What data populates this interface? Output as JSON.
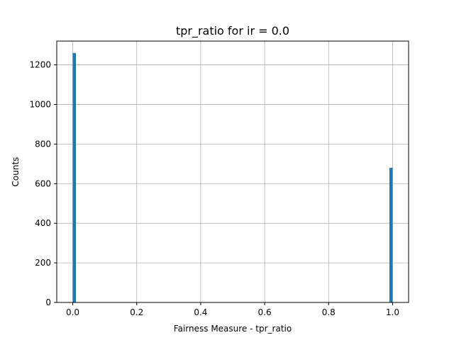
{
  "chart_data": {
    "type": "bar",
    "title": "tpr_ratio for ir = 0.0",
    "xlabel": "Fairness Measure - tpr_ratio",
    "ylabel": "Counts",
    "xlim": [
      -0.05,
      1.05
    ],
    "ylim": [
      0,
      1320
    ],
    "xticks": [
      0.0,
      0.2,
      0.4,
      0.6,
      0.8,
      1.0
    ],
    "xtick_labels": [
      "0.0",
      "0.2",
      "0.4",
      "0.6",
      "0.8",
      "1.0"
    ],
    "yticks": [
      0,
      200,
      400,
      600,
      800,
      1000,
      1200
    ],
    "ytick_labels": [
      "0",
      "200",
      "400",
      "600",
      "800",
      "1000",
      "1200"
    ],
    "grid": true,
    "bar_color": "#1f77b4",
    "bins": [
      {
        "x_start": 0.0,
        "x_end": 0.01,
        "count": 1260
      },
      {
        "x_start": 0.99,
        "x_end": 1.0,
        "count": 680
      }
    ]
  }
}
